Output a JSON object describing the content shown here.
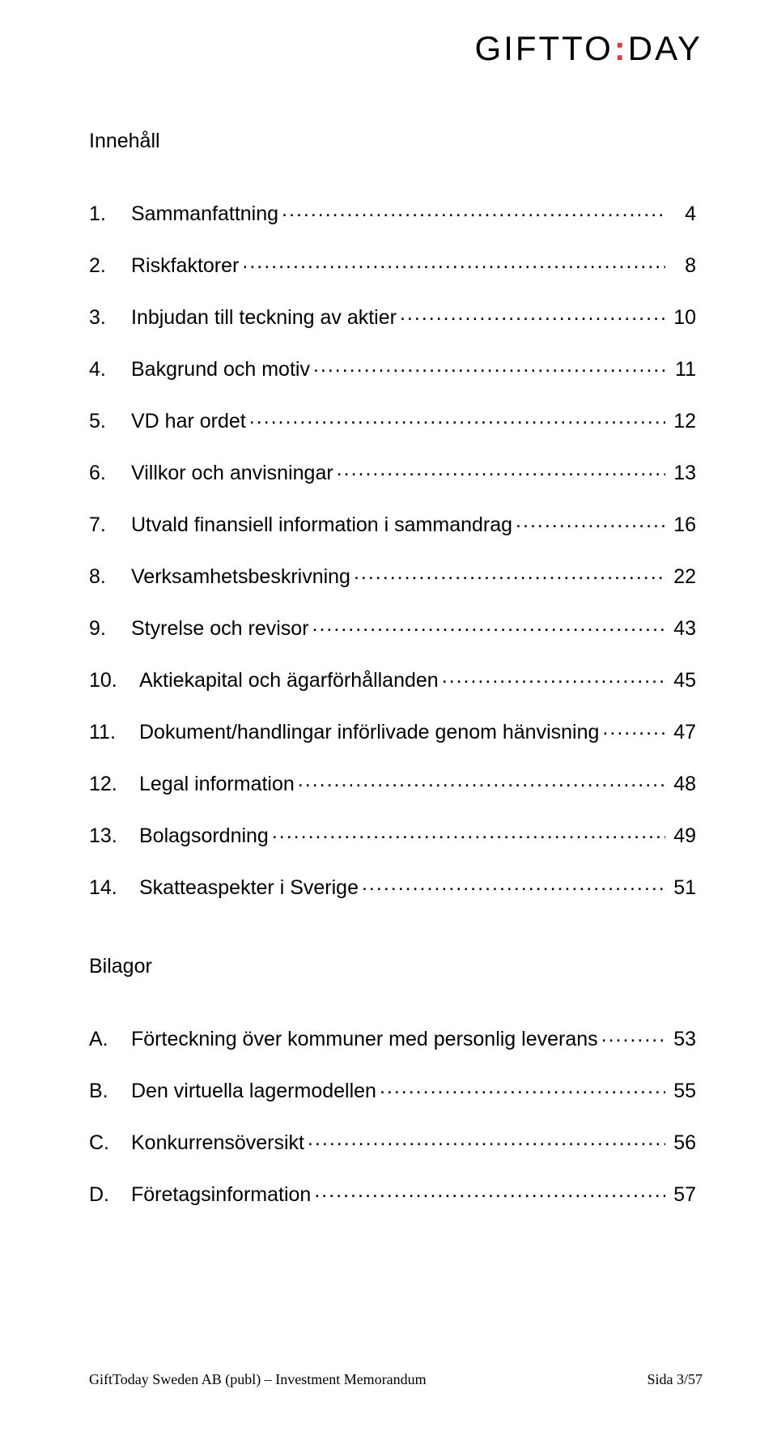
{
  "logo": {
    "part1": "GIFTTO",
    "colon": ":",
    "part2": "DAY",
    "accent_color": "#e03a3a"
  },
  "title": "Innehåll",
  "toc": [
    {
      "num": "1.",
      "label": "Sammanfattning",
      "page": "4"
    },
    {
      "num": "2.",
      "label": "Riskfaktorer",
      "page": "8"
    },
    {
      "num": "3.",
      "label": "Inbjudan till teckning av aktier",
      "page": "10"
    },
    {
      "num": "4.",
      "label": "Bakgrund och motiv",
      "page": "11"
    },
    {
      "num": "5.",
      "label": "VD har ordet",
      "page": "12"
    },
    {
      "num": "6.",
      "label": "Villkor och anvisningar",
      "page": "13"
    },
    {
      "num": "7.",
      "label": "Utvald finansiell information i sammandrag",
      "page": "16"
    },
    {
      "num": "8.",
      "label": "Verksamhetsbeskrivning",
      "page": "22"
    },
    {
      "num": "9.",
      "label": "Styrelse och revisor",
      "page": "43"
    },
    {
      "num": "10.",
      "label": "Aktiekapital och ägarförhållanden",
      "page": "45"
    },
    {
      "num": "11.",
      "label": "Dokument/handlingar införlivade genom hänvisning",
      "page": "47"
    },
    {
      "num": "12.",
      "label": "Legal information",
      "page": "48"
    },
    {
      "num": "13.",
      "label": "Bolagsordning",
      "page": "49"
    },
    {
      "num": "14.",
      "label": "Skatteaspekter i Sverige",
      "page": "51"
    }
  ],
  "appendix_title": "Bilagor",
  "appendix": [
    {
      "num": "A.",
      "label": "Förteckning över kommuner med personlig leverans",
      "page": "53"
    },
    {
      "num": "B.",
      "label": "Den virtuella lagermodellen",
      "page": "55"
    },
    {
      "num": "C.",
      "label": "Konkurrensöversikt",
      "page": "56"
    },
    {
      "num": "D.",
      "label": "Företagsinformation",
      "page": "57"
    }
  ],
  "footer": {
    "left": "GiftToday Sweden AB (publ) – Investment Memorandum",
    "right_prefix": "Sida ",
    "right_page": "3/57"
  },
  "colors": {
    "text": "#000000",
    "background": "#ffffff",
    "accent": "#e03a3a"
  },
  "typography": {
    "body_fontsize_pt": 19,
    "footer_fontsize_pt": 14
  }
}
